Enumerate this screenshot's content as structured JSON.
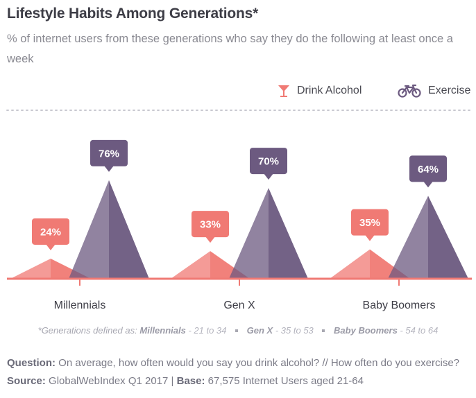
{
  "title": "Lifestyle Habits Among Generations*",
  "subtitle": "% of internet users from these generations who say they do the following at least once a week",
  "legend": {
    "alcohol": {
      "label": "Drink Alcohol",
      "icon": "cocktail-glass-icon",
      "color": "#f07a74"
    },
    "exercise": {
      "label": "Exercise",
      "icon": "bicycle-icon",
      "color": "#6c5a80"
    }
  },
  "chart_data": {
    "type": "bar",
    "categories": [
      "Millennials",
      "Gen X",
      "Baby Boomers"
    ],
    "series": [
      {
        "name": "Drink Alcohol",
        "values": [
          24,
          33,
          35
        ],
        "labels": [
          "24%",
          "33%",
          "35%"
        ],
        "color": "#f07a74"
      },
      {
        "name": "Exercise",
        "values": [
          76,
          70,
          64
        ],
        "labels": [
          "76%",
          "70%",
          "64%"
        ],
        "color": "#6c5a80"
      }
    ],
    "ylim": [
      0,
      100
    ]
  },
  "footnote": {
    "prefix": "*Generations defined as:",
    "items": [
      {
        "name": "Millennials",
        "range": "- 21 to 34"
      },
      {
        "name": "Gen X",
        "range": "- 35 to 53"
      },
      {
        "name": "Baby Boomers",
        "range": "- 54 to 64"
      }
    ]
  },
  "question": {
    "label": "Question:",
    "text": "On average, how often would you say you drink alcohol? // How often do you exercise?"
  },
  "source": {
    "label": "Source:",
    "text": "GlobalWebIndex Q1 2017",
    "sep": "|",
    "base_label": "Base:",
    "base_text": "67,575 Internet Users aged 21-64"
  }
}
